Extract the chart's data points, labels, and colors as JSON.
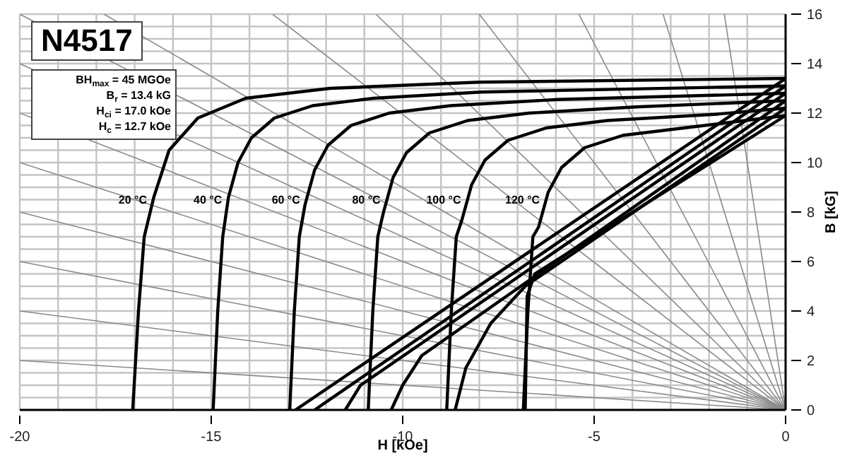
{
  "chart_data": {
    "type": "line",
    "title": "N4517",
    "xlabel": "H [kOe]",
    "ylabel": "B [kG]",
    "annotations": [
      "BH$_{max}$ = 45 MGOe",
      "B$_{r}$ = 13.4 kG",
      "H$_{ci}$ = 17.0 kOe",
      "H$_{c}$ = 12.7 kOe",
      {
        "text": "20 °C",
        "x": -16.53,
        "y": 8.4
      },
      {
        "text": "40 °C",
        "x": -14.57,
        "y": 8.4
      },
      {
        "text": "60 °C",
        "x": -12.53,
        "y": 8.4
      },
      {
        "text": "80 °C",
        "x": -10.43,
        "y": 8.4
      },
      {
        "text": "100 °C",
        "x": -8.33,
        "y": 8.4
      },
      {
        "text": "120 °C",
        "x": -6.27,
        "y": 8.4
      }
    ],
    "xlim": [
      -20,
      0
    ],
    "ylim": [
      0,
      16
    ],
    "xticks": [
      -20,
      {
        "value": -19,
        "label": null
      },
      {
        "value": -18,
        "label": null
      },
      {
        "value": -17,
        "label": null
      },
      {
        "value": -16,
        "label": null
      },
      -15,
      {
        "value": -14,
        "label": null
      },
      {
        "value": -13,
        "label": null
      },
      {
        "value": -12,
        "label": null
      },
      {
        "value": -11,
        "label": null
      },
      -10,
      {
        "value": -9,
        "label": null
      },
      {
        "value": -8,
        "label": null
      },
      {
        "value": -7,
        "label": null
      },
      {
        "value": -6,
        "label": null
      },
      -5,
      {
        "value": -4,
        "label": null
      },
      {
        "value": -3,
        "label": null
      },
      {
        "value": -2,
        "label": null
      },
      {
        "value": -1,
        "label": null
      },
      0
    ],
    "yticks": [
      0,
      {
        "value": 0.5,
        "label": null
      },
      {
        "value": 1,
        "label": null
      },
      {
        "value": 1.5,
        "label": null
      },
      2,
      {
        "value": 2.5,
        "label": null
      },
      {
        "value": 3,
        "label": null
      },
      {
        "value": 3.5,
        "label": null
      },
      4,
      {
        "value": 4.5,
        "label": null
      },
      {
        "value": 5,
        "label": null
      },
      {
        "value": 5.5,
        "label": null
      },
      6,
      {
        "value": 6.5,
        "label": null
      },
      {
        "value": 7,
        "label": null
      },
      {
        "value": 7.5,
        "label": null
      },
      8,
      {
        "value": 8.5,
        "label": null
      },
      {
        "value": 9,
        "label": null
      },
      {
        "value": 9.5,
        "label": null
      },
      10,
      {
        "value": 10.5,
        "label": null
      },
      {
        "value": 11,
        "label": null
      },
      {
        "value": 11.5,
        "label": null
      },
      12,
      {
        "value": 12.5,
        "label": null
      },
      {
        "value": 13,
        "label": null
      },
      {
        "value": 13.5,
        "label": null
      },
      14,
      {
        "value": 14.5,
        "label": null
      },
      {
        "value": 15,
        "label": null
      },
      {
        "value": 15.5,
        "label": null
      },
      16
    ],
    "grid": true,
    "series": [
      {
        "color": "#8a8a8a",
        "x": [
          -20,
          0
        ],
        "values": [
          2,
          0
        ]
      },
      {
        "color": "#8a8a8a",
        "x": [
          -20,
          0
        ],
        "values": [
          4,
          0
        ]
      },
      {
        "color": "#8a8a8a",
        "x": [
          -20,
          0
        ],
        "values": [
          6,
          0
        ]
      },
      {
        "color": "#8a8a8a",
        "x": [
          -20,
          0
        ],
        "values": [
          8,
          0
        ]
      },
      {
        "color": "#8a8a8a",
        "x": [
          -20,
          0
        ],
        "values": [
          10,
          0
        ]
      },
      {
        "color": "#8a8a8a",
        "x": [
          -20,
          0
        ],
        "values": [
          12,
          0
        ]
      },
      {
        "color": "#8a8a8a",
        "x": [
          -20,
          0
        ],
        "values": [
          14,
          0
        ]
      },
      {
        "color": "#8a8a8a",
        "x": [
          -20,
          0
        ],
        "values": [
          16,
          0
        ]
      },
      {
        "color": "#8a8a8a",
        "x": [
          -17.8,
          0
        ],
        "values": [
          16,
          0
        ]
      },
      {
        "color": "#8a8a8a",
        "x": [
          -13.4,
          0
        ],
        "values": [
          16,
          0
        ]
      },
      {
        "color": "#8a8a8a",
        "x": [
          -10.7,
          0
        ],
        "values": [
          16,
          0
        ]
      },
      {
        "color": "#8a8a8a",
        "x": [
          -8,
          0
        ],
        "values": [
          16,
          0
        ]
      },
      {
        "color": "#8a8a8a",
        "x": [
          -5.4,
          0
        ],
        "values": [
          16,
          0
        ]
      },
      {
        "color": "#8a8a8a",
        "x": [
          -3.2,
          0
        ],
        "values": [
          16,
          0
        ]
      },
      {
        "color": "#8a8a8a",
        "x": [
          -1.6,
          0
        ],
        "values": [
          16,
          0
        ]
      },
      {
        "color": "#000000",
        "x": [
          -17.05,
          -16.9,
          -16.75,
          -16.5,
          -16.1,
          -15.35,
          -14.1,
          -11.9,
          -8,
          0
        ],
        "values": [
          0,
          4,
          7,
          8.6,
          10.5,
          11.8,
          12.6,
          13.0,
          13.25,
          13.4
        ]
      },
      {
        "color": "#000000",
        "x": [
          -14.95,
          -14.83,
          -14.7,
          -14.55,
          -14.3,
          -13.95,
          -13.35,
          -12.35,
          -10.75,
          -7.95,
          0
        ],
        "values": [
          0,
          4,
          7,
          8.6,
          10.0,
          11.0,
          11.8,
          12.3,
          12.6,
          12.85,
          13.1
        ]
      },
      {
        "color": "#000000",
        "x": [
          -12.95,
          -12.83,
          -12.7,
          -12.55,
          -12.3,
          -11.95,
          -11.35,
          -10.35,
          -8.75,
          -5.95,
          0
        ],
        "values": [
          0,
          4,
          7,
          8.3,
          9.7,
          10.7,
          11.5,
          12.0,
          12.3,
          12.55,
          12.8
        ]
      },
      {
        "color": "#000000",
        "x": [
          -10.9,
          -10.78,
          -10.65,
          -10.5,
          -10.25,
          -9.9,
          -9.3,
          -8.3,
          -6.7,
          -3.9,
          0
        ],
        "values": [
          0,
          4,
          7,
          8.0,
          9.4,
          10.4,
          11.2,
          11.7,
          12.0,
          12.25,
          12.5
        ]
      },
      {
        "color": "#000000",
        "x": [
          -8.85,
          -8.73,
          -8.6,
          -8.45,
          -8.2,
          -7.85,
          -7.25,
          -6.25,
          -4.65,
          -1.85,
          0
        ],
        "values": [
          0,
          4,
          7,
          7.7,
          9.1,
          10.1,
          10.9,
          11.4,
          11.7,
          11.95,
          12.2
        ]
      },
      {
        "color": "#000000",
        "x": [
          -6.85,
          -6.73,
          -6.6,
          -6.45,
          -6.2,
          -5.85,
          -5.25,
          -4.25,
          -2.65,
          0
        ],
        "values": [
          0,
          4,
          7,
          7.4,
          8.8,
          9.8,
          10.6,
          11.1,
          11.4,
          11.9
        ]
      },
      {
        "color": "#000000",
        "x": [
          -12.8,
          0
        ],
        "values": [
          0,
          13.4
        ]
      },
      {
        "color": "#000000",
        "x": [
          -12.3,
          0
        ],
        "values": [
          0,
          13.1
        ]
      },
      {
        "color": "#000000",
        "x": [
          -11.5,
          -11.1,
          0
        ],
        "values": [
          0,
          1.0,
          12.8
        ]
      },
      {
        "color": "#000000",
        "x": [
          -10.3,
          -10.0,
          -9.5,
          0
        ],
        "values": [
          0,
          1.0,
          2.2,
          12.5
        ]
      },
      {
        "color": "#000000",
        "x": [
          -8.63,
          -8.35,
          -7.7,
          -6.8,
          0
        ],
        "values": [
          0,
          1.7,
          3.5,
          5.0,
          12.2
        ]
      },
      {
        "color": "#000000",
        "x": [
          -6.8,
          -6.75,
          -6.55,
          0
        ],
        "values": [
          0,
          4.6,
          5.5,
          11.9
        ]
      }
    ]
  }
}
